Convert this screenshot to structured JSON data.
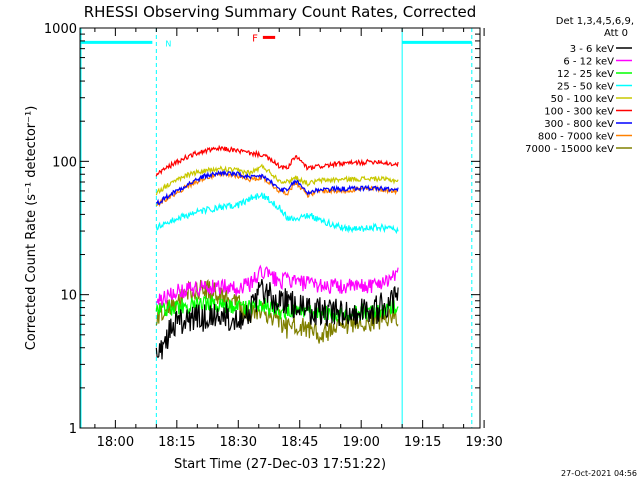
{
  "chart_data": {
    "type": "line",
    "title": "RHESSI Observing Summary Count Rates, Corrected",
    "xlabel": "Start Time (27-Dec-03 17:51:22)",
    "ylabel": "Corrected Count Rate (s⁻¹ detector⁻¹)",
    "y_scale": "log",
    "ylim": [
      1,
      1000
    ],
    "xlim": [
      "17:51:22",
      "19:29"
    ],
    "x_ticks": [
      "18:00",
      "18:15",
      "18:30",
      "18:45",
      "19:00",
      "19:15",
      "19:30"
    ],
    "y_ticks": [
      "1",
      "10",
      "100",
      "1000"
    ],
    "legend_header": [
      "Det 1,3,4,5,6,9,",
      "Att 0"
    ],
    "legend_position": "right",
    "annotations": {
      "night_label": "N",
      "flare_label": "F",
      "night_start": "17:51:22",
      "night_end": "18:10",
      "night2_start": "19:10",
      "night2_end": "19:27",
      "night_level": 780,
      "flare_start": "18:36",
      "flare_end": "18:39",
      "flare_level": 850
    },
    "footer_date": "27-Oct-2021 04:56",
    "data_range": [
      "18:10",
      "19:09"
    ],
    "x": [
      "18:10",
      "18:14",
      "18:18",
      "18:22",
      "18:26",
      "18:30",
      "18:33",
      "18:36",
      "18:40",
      "18:42",
      "18:44",
      "18:47",
      "18:50",
      "18:55",
      "19:00",
      "19:04",
      "19:08"
    ],
    "series": [
      {
        "name": "3 - 6 keV",
        "color": "#000000",
        "values": [
          3.2,
          6,
          6.5,
          6.8,
          7,
          6.8,
          7.5,
          11,
          8.5,
          9,
          8,
          7.5,
          7.5,
          7.4,
          7.5,
          7.8,
          9
        ]
      },
      {
        "name": "6 - 12 keV",
        "color": "#ff00ff",
        "values": [
          9,
          10.5,
          11,
          11.5,
          11.5,
          11.2,
          12,
          15,
          12.5,
          13,
          12.5,
          12,
          11.8,
          11.5,
          11.5,
          12,
          14
        ]
      },
      {
        "name": "12 - 25 keV",
        "color": "#00ff00",
        "values": [
          7.5,
          8,
          8.2,
          8.5,
          8.3,
          8,
          8,
          8.5,
          7.5,
          7.5,
          7.5,
          7.5,
          7.2,
          7.2,
          7.3,
          7.5,
          8
        ]
      },
      {
        "name": "25 - 50 keV",
        "color": "#00ffff",
        "values": [
          32,
          36,
          40,
          43,
          45,
          47,
          53,
          56,
          45,
          38,
          37,
          40,
          36,
          32,
          31,
          32,
          31
        ]
      },
      {
        "name": "50 - 100 keV",
        "color": "#c8c800",
        "values": [
          58,
          70,
          80,
          85,
          88,
          85,
          82,
          92,
          72,
          70,
          76,
          68,
          72,
          73,
          74,
          74,
          72
        ]
      },
      {
        "name": "100 - 300 keV",
        "color": "#ff0000",
        "values": [
          80,
          95,
          110,
          120,
          125,
          120,
          115,
          112,
          92,
          88,
          110,
          88,
          92,
          96,
          98,
          100,
          95
        ]
      },
      {
        "name": "300 - 800 keV",
        "color": "#0000ff",
        "values": [
          48,
          58,
          68,
          78,
          82,
          80,
          75,
          78,
          62,
          60,
          72,
          58,
          62,
          62,
          63,
          63,
          61
        ]
      },
      {
        "name": "800 - 7000 keV",
        "color": "#ff8000",
        "values": [
          47,
          56,
          66,
          76,
          80,
          78,
          73,
          76,
          60,
          58,
          70,
          56,
          60,
          60,
          62,
          62,
          60
        ]
      },
      {
        "name": "7000 - 15000 keV",
        "color": "#808000",
        "values": [
          7,
          8.5,
          10.5,
          11,
          10,
          8.5,
          7,
          7.5,
          6.5,
          5.5,
          6,
          5.5,
          5,
          5.5,
          6,
          6.5,
          7
        ]
      }
    ]
  }
}
